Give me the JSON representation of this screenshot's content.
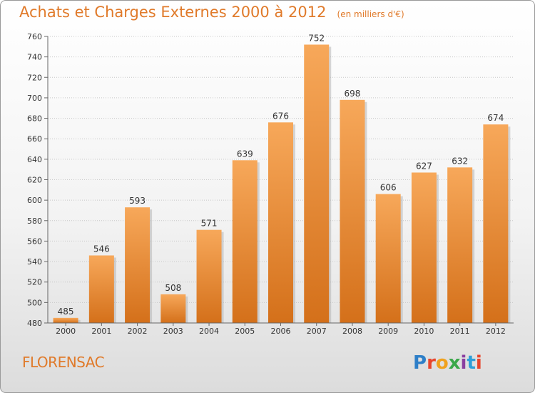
{
  "header": {
    "title": "Achats et Charges Externes 2000 à 2012",
    "subtitle": "(en milliers d'€)"
  },
  "footer": {
    "town": "FLORENSAC",
    "logo_text": "Proxiti"
  },
  "colors": {
    "accent": "#e07a2a",
    "bar_top": "#f7a85a",
    "bar_bottom": "#d4701a"
  },
  "chart_data": {
    "type": "bar",
    "title": "Achats et Charges Externes 2000 à 2012",
    "subtitle": "(en milliers d'€)",
    "categories": [
      "2000",
      "2001",
      "2002",
      "2003",
      "2004",
      "2005",
      "2006",
      "2007",
      "2008",
      "2009",
      "2010",
      "2011",
      "2012"
    ],
    "values": [
      485,
      546,
      593,
      508,
      571,
      639,
      676,
      752,
      698,
      606,
      627,
      632,
      674
    ],
    "ylim": [
      480,
      760
    ],
    "yticks": [
      480,
      500,
      520,
      540,
      560,
      580,
      600,
      620,
      640,
      660,
      680,
      700,
      720,
      740,
      760
    ],
    "grid": true,
    "legend": "none"
  }
}
